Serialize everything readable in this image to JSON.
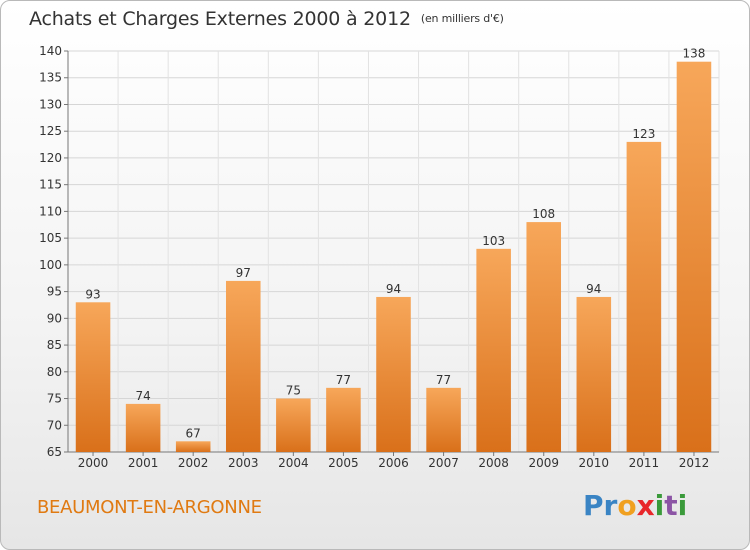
{
  "header": {
    "title": "Achats et Charges Externes 2000 à 2012",
    "unit_note": "(en milliers d'€)"
  },
  "footer": {
    "commune": "BEAUMONT-EN-ARGONNE",
    "logo_letters": [
      {
        "ch": "P",
        "color": "#3a84c4"
      },
      {
        "ch": "r",
        "color": "#3a84c4"
      },
      {
        "ch": "o",
        "color": "#f0a020"
      },
      {
        "ch": "x",
        "color": "#e8262a"
      },
      {
        "ch": "i",
        "color": "#3a9a3a"
      },
      {
        "ch": "t",
        "color": "#8c55a5"
      },
      {
        "ch": "i",
        "color": "#3a9a3a"
      }
    ]
  },
  "colors": {
    "bar_top": "#f7a75a",
    "bar_bottom": "#d9701a",
    "commune_text": "#e07a12"
  },
  "chart_data": {
    "type": "bar",
    "categories": [
      "2000",
      "2001",
      "2002",
      "2003",
      "2004",
      "2005",
      "2006",
      "2007",
      "2008",
      "2009",
      "2010",
      "2011",
      "2012"
    ],
    "values": [
      93,
      74,
      67,
      97,
      75,
      77,
      94,
      77,
      103,
      108,
      94,
      123,
      138
    ],
    "ylim": [
      65,
      140
    ],
    "yticks": [
      65,
      70,
      75,
      80,
      85,
      90,
      95,
      100,
      105,
      110,
      115,
      120,
      125,
      130,
      135,
      140
    ],
    "grid": true
  }
}
